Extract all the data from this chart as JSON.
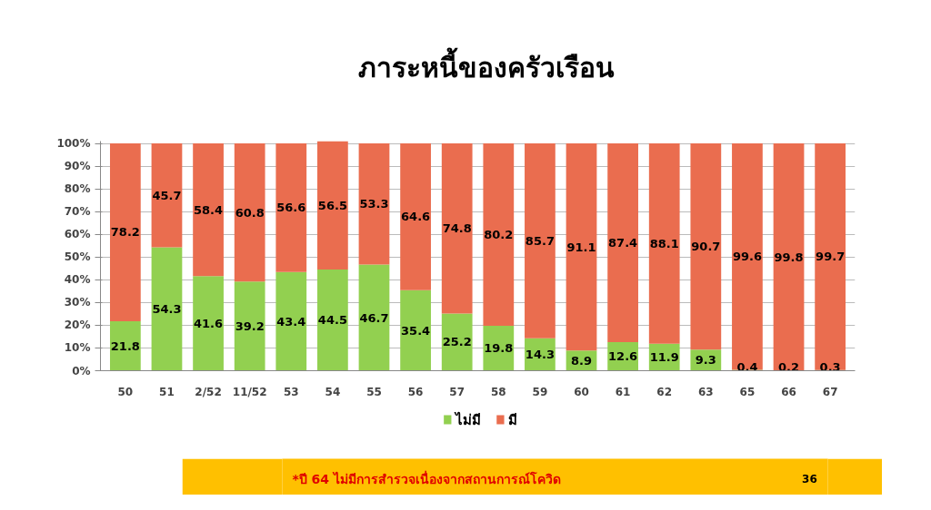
{
  "chart_data": {
    "type": "bar",
    "title": "ภาระหนี้ของครัวเรือน",
    "categories": [
      "50",
      "51",
      "2/52",
      "11/52",
      "53",
      "54",
      "55",
      "56",
      "57",
      "58",
      "59",
      "60",
      "61",
      "62",
      "63",
      "65",
      "66",
      "67"
    ],
    "stacked": true,
    "series": [
      {
        "name": "ไม่มี",
        "color": "#92d050",
        "values": [
          21.8,
          54.3,
          41.6,
          39.2,
          43.4,
          44.5,
          46.7,
          35.4,
          25.2,
          19.8,
          14.3,
          8.9,
          12.6,
          11.9,
          9.3,
          0.4,
          0.2,
          0.3
        ]
      },
      {
        "name": "มี",
        "color": "#ea6d4f",
        "values": [
          78.2,
          45.7,
          58.4,
          60.8,
          56.6,
          56.5,
          53.3,
          64.6,
          74.8,
          80.2,
          85.7,
          91.1,
          87.4,
          88.1,
          90.7,
          99.6,
          99.8,
          99.7
        ]
      }
    ],
    "ylim": [
      0,
      101
    ],
    "yticks": [
      {
        "value": 0,
        "label": "0%"
      },
      {
        "value": 10,
        "label": "10%"
      },
      {
        "value": 20,
        "label": "20%"
      },
      {
        "value": 30,
        "label": "30%"
      },
      {
        "value": 40,
        "label": "40%"
      },
      {
        "value": 50,
        "label": "50%"
      },
      {
        "value": 60,
        "label": "60%"
      },
      {
        "value": 70,
        "label": "70%"
      },
      {
        "value": 80,
        "label": "80%"
      },
      {
        "value": 90,
        "label": "90%"
      },
      {
        "value": 100,
        "label": "100%"
      }
    ],
    "grid": "y",
    "legend": "bottom",
    "data_labels": true,
    "annotations": [
      "*ปี 64 ไม่มีการสำรวจเนื่องจากสถานการณ์โควิด",
      "36"
    ]
  }
}
